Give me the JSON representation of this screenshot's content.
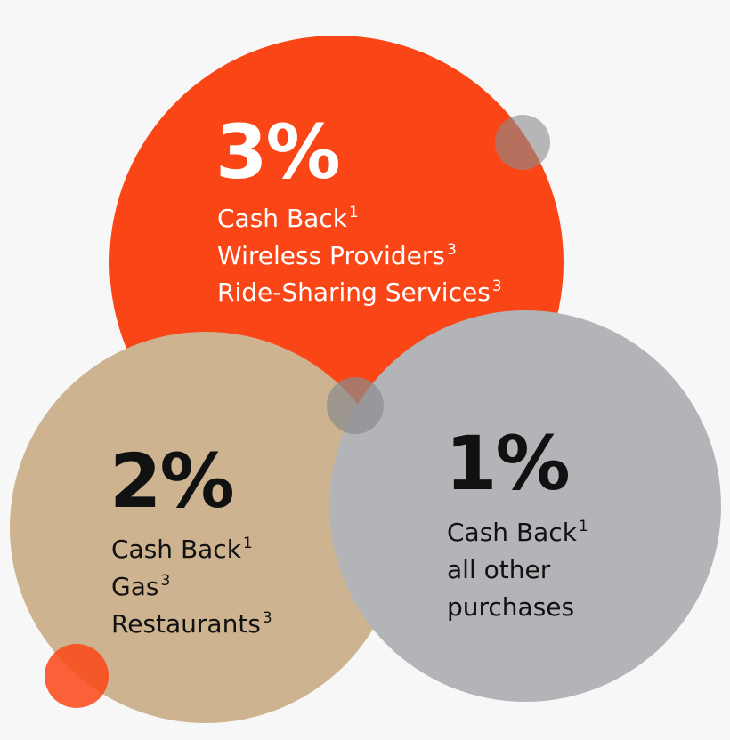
{
  "circles": [
    {
      "rate": "3%",
      "lines": [
        {
          "text": "Cash Back",
          "sup": "1"
        },
        {
          "text": "Wireless Providers",
          "sup": "3"
        },
        {
          "text": "Ride-Sharing Services",
          "sup": "3"
        }
      ]
    },
    {
      "rate": "2%",
      "lines": [
        {
          "text": "Cash Back",
          "sup": "1"
        },
        {
          "text": "Gas",
          "sup": "3"
        },
        {
          "text": "Restaurants",
          "sup": "3"
        }
      ]
    },
    {
      "rate": "1%",
      "lines": [
        {
          "text": "Cash Back",
          "sup": "1"
        },
        {
          "text": "all other"
        },
        {
          "text": "purchases"
        }
      ]
    }
  ]
}
